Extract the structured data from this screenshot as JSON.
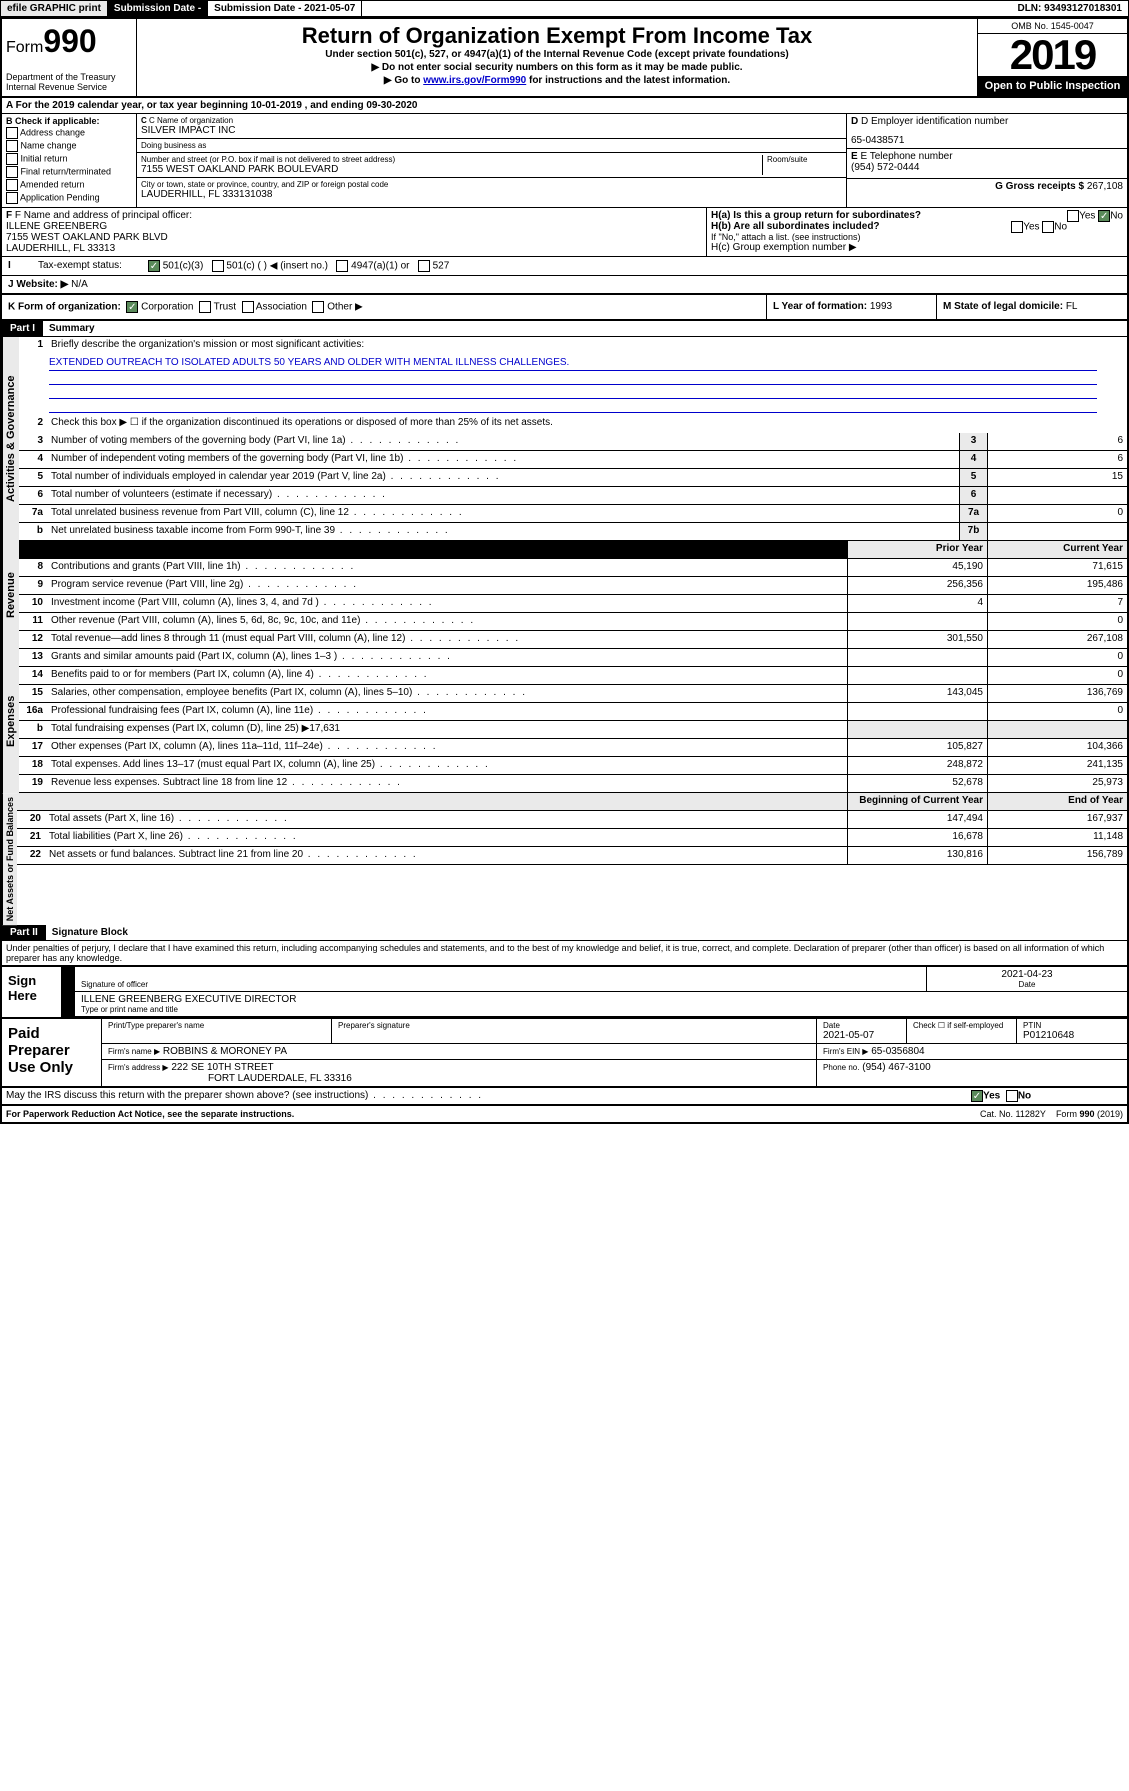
{
  "topbar": {
    "efile": "efile GRAPHIC print",
    "subdate_lbl": "Submission Date - 2021-05-07",
    "dln": "DLN: 93493127018301"
  },
  "header": {
    "form_prefix": "Form",
    "form_no": "990",
    "title": "Return of Organization Exempt From Income Tax",
    "sub1": "Under section 501(c), 527, or 4947(a)(1) of the Internal Revenue Code (except private foundations)",
    "sub2": "▶ Do not enter social security numbers on this form as it may be made public.",
    "sub3_pre": "▶ Go to ",
    "sub3_link": "www.irs.gov/Form990",
    "sub3_post": " for instructions and the latest information.",
    "dept": "Department of the Treasury\nInternal Revenue Service",
    "omb": "OMB No. 1545-0047",
    "year": "2019",
    "open": "Open to Public Inspection"
  },
  "period": {
    "text_pre": "A For the 2019 calendar year, or tax year beginning ",
    "begin": "10-01-2019",
    "mid": " , and ending ",
    "end": "09-30-2020"
  },
  "boxB": {
    "title": "B Check if applicable:",
    "opts": [
      "Address change",
      "Name change",
      "Initial return",
      "Final return/terminated",
      "Amended return",
      "Application Pending"
    ]
  },
  "boxC": {
    "name_lbl": "C Name of organization",
    "name": "SILVER IMPACT INC",
    "dba_lbl": "Doing business as",
    "dba": "",
    "addr_lbl": "Number and street (or P.O. box if mail is not delivered to street address)",
    "room_lbl": "Room/suite",
    "addr": "7155 WEST OAKLAND PARK BOULEVARD",
    "city_lbl": "City or town, state or province, country, and ZIP or foreign postal code",
    "city": "LAUDERHILL, FL  333131038"
  },
  "boxD": {
    "lbl": "D Employer identification number",
    "val": "65-0438571"
  },
  "boxE": {
    "lbl": "E Telephone number",
    "val": "(954) 572-0444"
  },
  "boxG": {
    "lbl": "G Gross receipts $",
    "val": "267,108"
  },
  "boxF": {
    "lbl": "F Name and address of principal officer:",
    "name": "ILLENE GREENBERG",
    "addr1": "7155 WEST OAKLAND PARK BLVD",
    "addr2": "LAUDERHILL, FL  33313"
  },
  "boxH": {
    "ha": "H(a)  Is this a group return for subordinates?",
    "hb": "H(b)  Are all subordinates included?",
    "hb_note": "If \"No,\" attach a list. (see instructions)",
    "hc": "H(c)  Group exemption number ▶",
    "yes": "Yes",
    "no": "No"
  },
  "rowI": {
    "lbl": "I",
    "txt": "Tax-exempt status:",
    "opts": [
      "501(c)(3)",
      "501(c) (  ) ◀ (insert no.)",
      "4947(a)(1) or",
      "527"
    ]
  },
  "rowJ": {
    "lbl": "J",
    "txt": "Website: ▶",
    "val": "N/A"
  },
  "rowK": {
    "lbl": "K Form of organization:",
    "opts": [
      "Corporation",
      "Trust",
      "Association",
      "Other ▶"
    ],
    "L": "L Year of formation: ",
    "Lval": "1993",
    "M": "M State of legal domicile: ",
    "Mval": "FL"
  },
  "part1": {
    "hdr": "Part I",
    "title": "Summary"
  },
  "sectAG": {
    "tab": "Activities & Governance",
    "l1": "Briefly describe the organization's mission or most significant activities:",
    "l1val": "EXTENDED OUTREACH TO ISOLATED ADULTS 50 YEARS AND OLDER WITH MENTAL ILLNESS CHALLENGES.",
    "l2": "Check this box ▶ ☐ if the organization discontinued its operations or disposed of more than 25% of its net assets.",
    "rows": [
      {
        "n": "3",
        "t": "Number of voting members of the governing body (Part VI, line 1a)",
        "b": "3",
        "v": "6"
      },
      {
        "n": "4",
        "t": "Number of independent voting members of the governing body (Part VI, line 1b)",
        "b": "4",
        "v": "6"
      },
      {
        "n": "5",
        "t": "Total number of individuals employed in calendar year 2019 (Part V, line 2a)",
        "b": "5",
        "v": "15"
      },
      {
        "n": "6",
        "t": "Total number of volunteers (estimate if necessary)",
        "b": "6",
        "v": ""
      },
      {
        "n": "7a",
        "t": "Total unrelated business revenue from Part VIII, column (C), line 12",
        "b": "7a",
        "v": "0"
      },
      {
        "n": "b",
        "t": "Net unrelated business taxable income from Form 990-T, line 39",
        "b": "7b",
        "v": ""
      }
    ]
  },
  "colhdrs": {
    "prior": "Prior Year",
    "current": "Current Year",
    "begin": "Beginning of Current Year",
    "end": "End of Year"
  },
  "sectRev": {
    "tab": "Revenue",
    "rows": [
      {
        "n": "8",
        "t": "Contributions and grants (Part VIII, line 1h)",
        "p": "45,190",
        "c": "71,615"
      },
      {
        "n": "9",
        "t": "Program service revenue (Part VIII, line 2g)",
        "p": "256,356",
        "c": "195,486"
      },
      {
        "n": "10",
        "t": "Investment income (Part VIII, column (A), lines 3, 4, and 7d )",
        "p": "4",
        "c": "7"
      },
      {
        "n": "11",
        "t": "Other revenue (Part VIII, column (A), lines 5, 6d, 8c, 9c, 10c, and 11e)",
        "p": "",
        "c": "0"
      },
      {
        "n": "12",
        "t": "Total revenue—add lines 8 through 11 (must equal Part VIII, column (A), line 12)",
        "p": "301,550",
        "c": "267,108"
      }
    ]
  },
  "sectExp": {
    "tab": "Expenses",
    "rows": [
      {
        "n": "13",
        "t": "Grants and similar amounts paid (Part IX, column (A), lines 1–3 )",
        "p": "",
        "c": "0"
      },
      {
        "n": "14",
        "t": "Benefits paid to or for members (Part IX, column (A), line 4)",
        "p": "",
        "c": "0"
      },
      {
        "n": "15",
        "t": "Salaries, other compensation, employee benefits (Part IX, column (A), lines 5–10)",
        "p": "143,045",
        "c": "136,769"
      },
      {
        "n": "16a",
        "t": "Professional fundraising fees (Part IX, column (A), line 11e)",
        "p": "",
        "c": "0"
      },
      {
        "n": "b",
        "t": "Total fundraising expenses (Part IX, column (D), line 25) ▶17,631",
        "p": null,
        "c": null
      },
      {
        "n": "17",
        "t": "Other expenses (Part IX, column (A), lines 11a–11d, 11f–24e)",
        "p": "105,827",
        "c": "104,366"
      },
      {
        "n": "18",
        "t": "Total expenses. Add lines 13–17 (must equal Part IX, column (A), line 25)",
        "p": "248,872",
        "c": "241,135"
      },
      {
        "n": "19",
        "t": "Revenue less expenses. Subtract line 18 from line 12",
        "p": "52,678",
        "c": "25,973"
      }
    ]
  },
  "sectNA": {
    "tab": "Net Assets or Fund Balances",
    "rows": [
      {
        "n": "20",
        "t": "Total assets (Part X, line 16)",
        "p": "147,494",
        "c": "167,937"
      },
      {
        "n": "21",
        "t": "Total liabilities (Part X, line 26)",
        "p": "16,678",
        "c": "11,148"
      },
      {
        "n": "22",
        "t": "Net assets or fund balances. Subtract line 21 from line 20",
        "p": "130,816",
        "c": "156,789"
      }
    ]
  },
  "part2": {
    "hdr": "Part II",
    "title": "Signature Block"
  },
  "perjury": "Under penalties of perjury, I declare that I have examined this return, including accompanying schedules and statements, and to the best of my knowledge and belief, it is true, correct, and complete. Declaration of preparer (other than officer) is based on all information of which preparer has any knowledge.",
  "sign": {
    "lab": "Sign Here",
    "sig_lbl": "Signature of officer",
    "date_lbl": "Date",
    "date": "2021-04-23",
    "name": "ILLENE GREENBERG  EXECUTIVE DIRECTOR",
    "name_lbl": "Type or print name and title"
  },
  "paid": {
    "lab": "Paid Preparer Use Only",
    "h_name": "Print/Type preparer's name",
    "h_sig": "Preparer's signature",
    "h_date": "Date",
    "date": "2021-05-07",
    "h_check": "Check ☐ if self-employed",
    "h_ptin": "PTIN",
    "ptin": "P01210648",
    "firm_lbl": "Firm's name    ▶",
    "firm": "ROBBINS & MORONEY PA",
    "ein_lbl": "Firm's EIN ▶",
    "ein": "65-0356804",
    "addr_lbl": "Firm's address ▶",
    "addr1": "222 SE 10TH STREET",
    "addr2": "FORT LAUDERDALE, FL  33316",
    "phone_lbl": "Phone no.",
    "phone": "(954) 467-3100"
  },
  "discuss": {
    "q": "May the IRS discuss this return with the preparer shown above? (see instructions)",
    "yes": "Yes",
    "no": "No"
  },
  "footer": {
    "pra": "For Paperwork Reduction Act Notice, see the separate instructions.",
    "cat": "Cat. No. 11282Y",
    "form": "Form 990 (2019)"
  }
}
